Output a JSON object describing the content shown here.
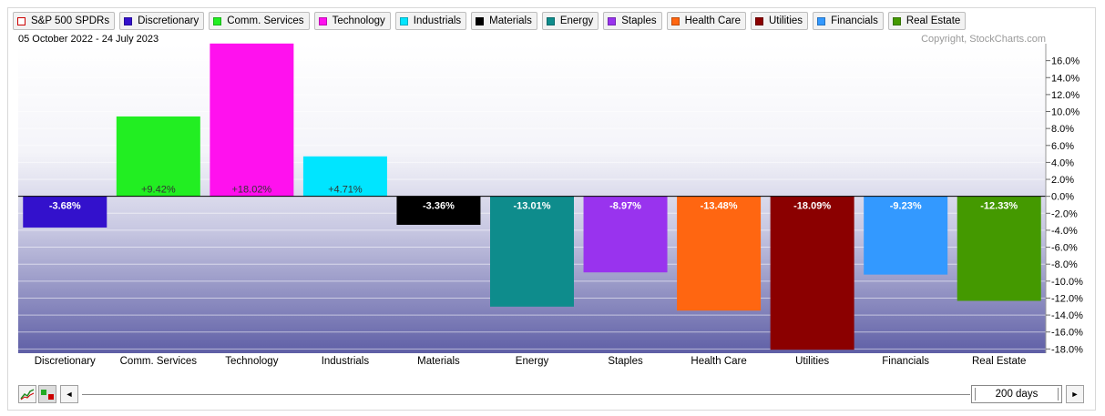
{
  "legend": {
    "items": [
      {
        "label": "S&P 500 SPDRs",
        "color": "#ffffff"
      },
      {
        "label": "Discretionary",
        "color": "#3311cc"
      },
      {
        "label": "Comm. Services",
        "color": "#22ee22"
      },
      {
        "label": "Technology",
        "color": "#ff11ee"
      },
      {
        "label": "Industrials",
        "color": "#00e5ff"
      },
      {
        "label": "Materials",
        "color": "#000000"
      },
      {
        "label": "Energy",
        "color": "#0e8c8c"
      },
      {
        "label": "Staples",
        "color": "#9933ee"
      },
      {
        "label": "Health Care",
        "color": "#ff6611"
      },
      {
        "label": "Utilities",
        "color": "#8b0000"
      },
      {
        "label": "Financials",
        "color": "#3399ff"
      },
      {
        "label": "Real Estate",
        "color": "#449900"
      }
    ]
  },
  "header": {
    "date_range": "05 October 2022 - 24 July 2023",
    "copyright": "Copyright, StockCharts.com"
  },
  "chart_data": {
    "type": "bar",
    "categories": [
      "Discretionary",
      "Comm. Services",
      "Technology",
      "Industrials",
      "Materials",
      "Energy",
      "Staples",
      "Health Care",
      "Utilities",
      "Financials",
      "Real Estate"
    ],
    "values": [
      -3.68,
      9.42,
      18.02,
      4.71,
      -3.36,
      -13.01,
      -8.97,
      -13.48,
      -18.09,
      -9.23,
      -12.33
    ],
    "data_labels": [
      "-3.68%",
      "+9.42%",
      "+18.02%",
      "+4.71%",
      "-3.36%",
      "-13.01%",
      "-8.97%",
      "-13.48%",
      "-18.09%",
      "-9.23%",
      "-12.33%"
    ],
    "colors": [
      "#3311cc",
      "#22ee22",
      "#ff11ee",
      "#00e5ff",
      "#000000",
      "#0e8c8c",
      "#9933ee",
      "#ff6611",
      "#8b0000",
      "#3399ff",
      "#449900"
    ],
    "ylim": [
      -18.5,
      18
    ],
    "yticks": [
      16,
      14,
      12,
      10,
      8,
      6,
      4,
      2,
      0,
      -2,
      -4,
      -6,
      -8,
      -10,
      -12,
      -14,
      -16,
      -18
    ],
    "ytick_labels": [
      "16.0%",
      "14.0%",
      "12.0%",
      "10.0%",
      "8.0%",
      "6.0%",
      "4.0%",
      "2.0%",
      "0.0%",
      "-2.0%",
      "-4.0%",
      "-6.0%",
      "-8.0%",
      "-10.0%",
      "-12.0%",
      "-14.0%",
      "-16.0%",
      "-18.0%"
    ],
    "grid": true
  },
  "controls": {
    "period_label": "200 days",
    "left_arrow": "◄",
    "right_arrow": "►",
    "line_icon": "line-chart-icon",
    "bar_icon": "bar-chart-icon"
  }
}
